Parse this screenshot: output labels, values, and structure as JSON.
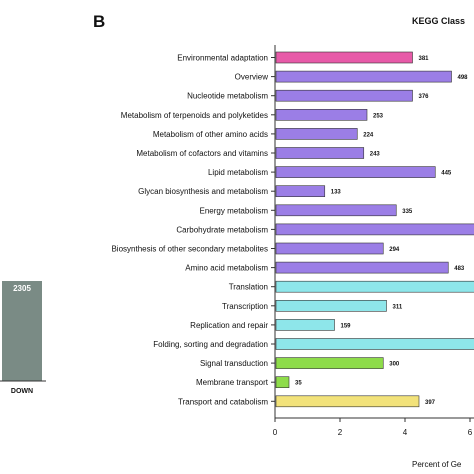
{
  "panel_label": "B",
  "left_panel": {
    "bar_value": "2305",
    "bar_color": "#7a8b85",
    "category": "DOWN"
  },
  "chart_data": {
    "type": "bar",
    "orientation": "horizontal",
    "title": "KEGG Class",
    "xlabel": "Percent of Ge",
    "xlim": [
      0,
      7
    ],
    "xticks": [
      0,
      2,
      4,
      6
    ],
    "grid": false,
    "categories": [
      "Environmental adaptation",
      "Overview",
      "Nucleotide metabolism",
      "Metabolism of terpenoids and polyketides",
      "Metabolism of other amino acids",
      "Metabolism of cofactors and vitamins",
      "Lipid metabolism",
      "Glycan biosynthesis and metabolism",
      "Energy metabolism",
      "Carbohydrate metabolism",
      "Biosynthesis of other secondary metabolites",
      "Amino acid metabolism",
      "Translation",
      "Transcription",
      "Replication and repair",
      "Folding, sorting and degradation",
      "Signal transduction",
      "Membrane transport",
      "Transport and catabolism"
    ],
    "percents": [
      4.2,
      5.4,
      4.2,
      2.8,
      2.5,
      2.7,
      4.9,
      1.5,
      3.7,
      7.5,
      3.3,
      5.3,
      7.5,
      3.4,
      1.8,
      6.6,
      3.3,
      0.4,
      4.4
    ],
    "labels": [
      "381",
      "498",
      "376",
      "253",
      "224",
      "243",
      "445",
      "133",
      "335",
      "",
      "294",
      "483",
      "",
      "311",
      "159",
      "",
      "300",
      "35",
      "397"
    ],
    "colors": [
      "#e75aa8",
      "#9b7ee6",
      "#9b7ee6",
      "#9b7ee6",
      "#9b7ee6",
      "#9b7ee6",
      "#9b7ee6",
      "#9b7ee6",
      "#9b7ee6",
      "#9b7ee6",
      "#9b7ee6",
      "#9b7ee6",
      "#8ee6ea",
      "#8ee6ea",
      "#8ee6ea",
      "#8ee6ea",
      "#8edc4a",
      "#8edc4a",
      "#f2e27a"
    ]
  }
}
